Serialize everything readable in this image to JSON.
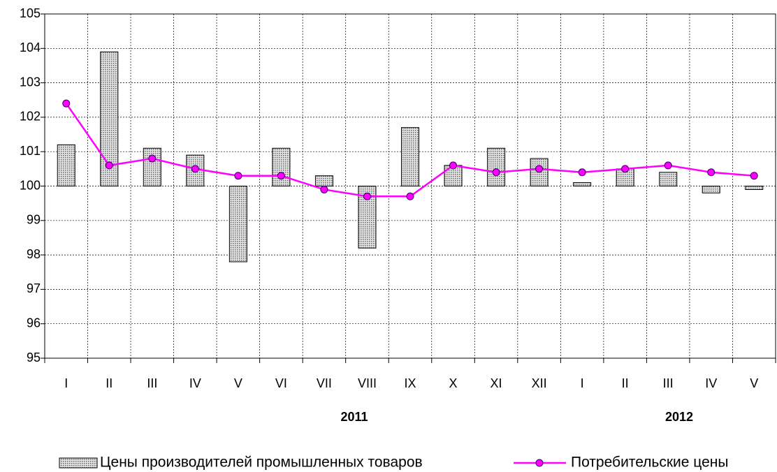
{
  "chart_data": {
    "type": "bar_line",
    "categories": [
      "I",
      "II",
      "III",
      "IV",
      "V",
      "VI",
      "VII",
      "VIII",
      "IX",
      "X",
      "XI",
      "XII",
      "I",
      "II",
      "III",
      "IV",
      "V"
    ],
    "groups": [
      "2011",
      "2012"
    ],
    "series": [
      {
        "name": "Цены производителей промышленных товаров",
        "type": "bar",
        "color": "#a0a0a0",
        "values": [
          101.2,
          103.9,
          101.1,
          100.9,
          97.8,
          101.1,
          100.3,
          98.2,
          101.7,
          100.6,
          101.1,
          100.8,
          100.1,
          100.5,
          100.4,
          99.8,
          99.9
        ]
      },
      {
        "name": "Потребительские цены",
        "type": "line",
        "color": "#ff00ff",
        "values": [
          102.4,
          100.6,
          100.8,
          100.5,
          100.3,
          100.3,
          99.9,
          99.7,
          99.7,
          100.6,
          100.4,
          100.5,
          100.4,
          100.5,
          100.6,
          100.4,
          100.3
        ]
      }
    ],
    "ylim": [
      95,
      105
    ],
    "yticks": [
      95,
      96,
      97,
      98,
      99,
      100,
      101,
      102,
      103,
      104,
      105
    ],
    "grid": true
  }
}
